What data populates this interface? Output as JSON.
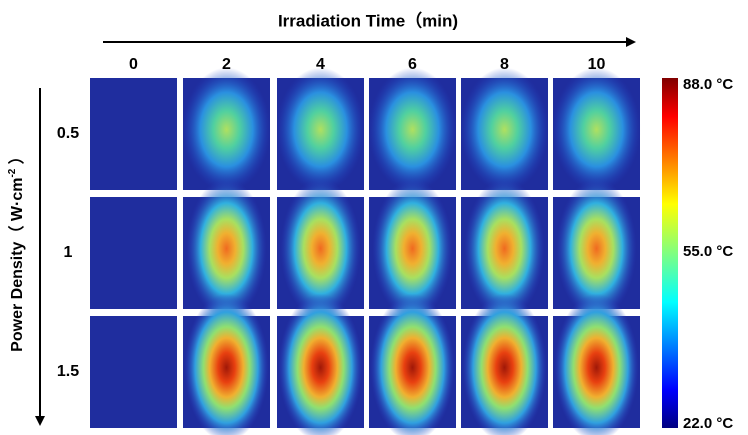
{
  "header": {
    "title": "Irradiation Time（min)"
  },
  "columns": [
    "0",
    "2",
    "4",
    "6",
    "8",
    "10"
  ],
  "rows_axis": {
    "title": "Power Density（ W·cm",
    "superscript": "-2",
    "title_end": " ）"
  },
  "rows": [
    "0.5",
    "1",
    "1.5"
  ],
  "colorbar": {
    "max": "88.0 °C",
    "mid": "55.0 °C",
    "min": "22.0 °C"
  }
}
